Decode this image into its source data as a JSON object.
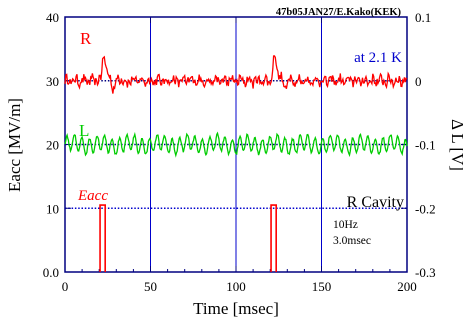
{
  "chart_data": {
    "type": "line",
    "stamp": "47b05JAN27/E.Kako(KEK)",
    "xlabel": "Time  [msec]",
    "ylabel_left": "Eacc  [MV/m]",
    "ylabel_right": "Δ L  [V]",
    "xlim": [
      0,
      200
    ],
    "ylim_left": [
      0,
      40
    ],
    "ylim_right": [
      -0.3,
      0.1
    ],
    "x_ticks": [
      "0",
      "50",
      "100",
      "150",
      "200"
    ],
    "y_ticks_left": [
      "0.0",
      "10",
      "20",
      "30",
      "40"
    ],
    "y_ticks_right": [
      "-0.3",
      "-0.2",
      "-0.1",
      "0",
      "0.1"
    ],
    "annotations": {
      "temperature": "at 2.1 K",
      "cavity": "R Cavity",
      "rep_rate": "10Hz",
      "pulse_width": "3.0msec"
    },
    "reference_levels": [
      {
        "value": 30,
        "color": "#000080"
      },
      {
        "value": 20,
        "color": "#000080"
      },
      {
        "value": 10,
        "color": "#0000cc"
      }
    ],
    "vertical_grid_x": [
      50,
      100,
      150
    ],
    "series": [
      {
        "name": "R",
        "color": "#ff0000",
        "axis": "right",
        "baseline": 0.0,
        "noise_amplitude": 0.006,
        "spike_times": [
          22,
          122
        ],
        "spike_peak": 0.05
      },
      {
        "name": "L",
        "color": "#00cc00",
        "axis": "right",
        "baseline": -0.1,
        "oscillation_amplitude": 0.012,
        "oscillation_period_ms": 4.4
      },
      {
        "name": "Eacc",
        "color": "#ff0000",
        "axis": "left",
        "pulses": [
          {
            "start": 20.5,
            "end": 23.5,
            "value": 10.5
          },
          {
            "start": 120.5,
            "end": 123.5,
            "value": 10.5
          }
        ]
      }
    ]
  }
}
